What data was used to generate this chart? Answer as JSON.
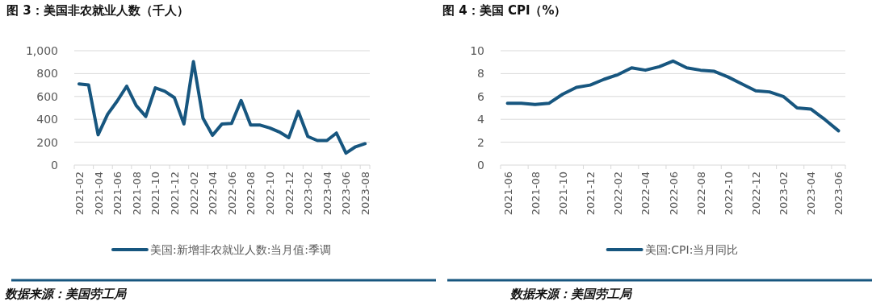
{
  "chart_data": [
    {
      "type": "line",
      "title": "图 3：美国非农就业人数（千人）",
      "categories": [
        "2021-02",
        null,
        "2021-04",
        null,
        "2021-06",
        null,
        "2021-08",
        null,
        "2021-10",
        null,
        "2021-12",
        null,
        "2022-02",
        null,
        "2022-04",
        null,
        "2022-06",
        null,
        "2022-08",
        null,
        "2022-10",
        null,
        "2022-12",
        null,
        "2023-02",
        null,
        "2023-04",
        null,
        "2023-06",
        null,
        "2023-08"
      ],
      "series": [
        {
          "name": "美国:新增非农就业人数:当月值:季调",
          "color": "#17567f",
          "values": [
            710,
            700,
            265,
            445,
            560,
            690,
            520,
            425,
            675,
            645,
            590,
            360,
            905,
            410,
            260,
            360,
            365,
            565,
            350,
            350,
            325,
            290,
            240,
            470,
            250,
            215,
            215,
            280,
            105,
            160,
            187
          ]
        }
      ],
      "ylim": [
        0,
        1000
      ],
      "yticks": [
        0,
        200,
        400,
        600,
        800,
        {
          "value": 1000,
          "label": "1,000"
        }
      ],
      "grid": "y",
      "legend": "bottom",
      "annotations": [
        "数据来源：美国劳工局"
      ]
    },
    {
      "type": "line",
      "title": "图 4：美国 CPI（%）",
      "categories": [
        "2021-06",
        null,
        "2021-08",
        null,
        "2021-10",
        null,
        "2021-12",
        null,
        "2022-02",
        null,
        "2022-04",
        null,
        "2022-06",
        null,
        "2022-08",
        null,
        "2022-10",
        null,
        "2022-12",
        null,
        "2023-02",
        null,
        "2023-04",
        null,
        "2023-06"
      ],
      "series": [
        {
          "name": "美国:CPI:当月同比",
          "color": "#17567f",
          "values": [
            5.4,
            5.4,
            5.3,
            5.4,
            6.2,
            6.8,
            7.0,
            7.5,
            7.9,
            8.5,
            8.3,
            8.6,
            9.1,
            8.5,
            8.3,
            8.2,
            7.7,
            7.1,
            6.5,
            6.4,
            6.0,
            5.0,
            4.9,
            4.0,
            3.0
          ]
        }
      ],
      "ylim": [
        0,
        10
      ],
      "yticks": [
        0,
        2,
        4,
        6,
        8,
        10
      ],
      "grid": "y",
      "legend": "bottom",
      "annotations": [
        "数据来源：美国劳工局"
      ]
    }
  ]
}
